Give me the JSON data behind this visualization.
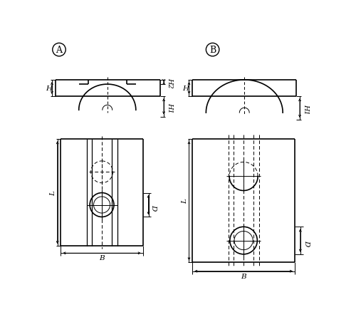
{
  "bg_color": "#ffffff",
  "line_color": "#000000",
  "label_A": "A",
  "label_B": "B",
  "dim_H": "H",
  "dim_H1": "H1",
  "dim_H2": "H2",
  "dim_L": "L",
  "dim_D": "D",
  "dim_B": "B",
  "lw_main": 1.2,
  "lw_thin": 0.7,
  "lw_dim": 0.7
}
